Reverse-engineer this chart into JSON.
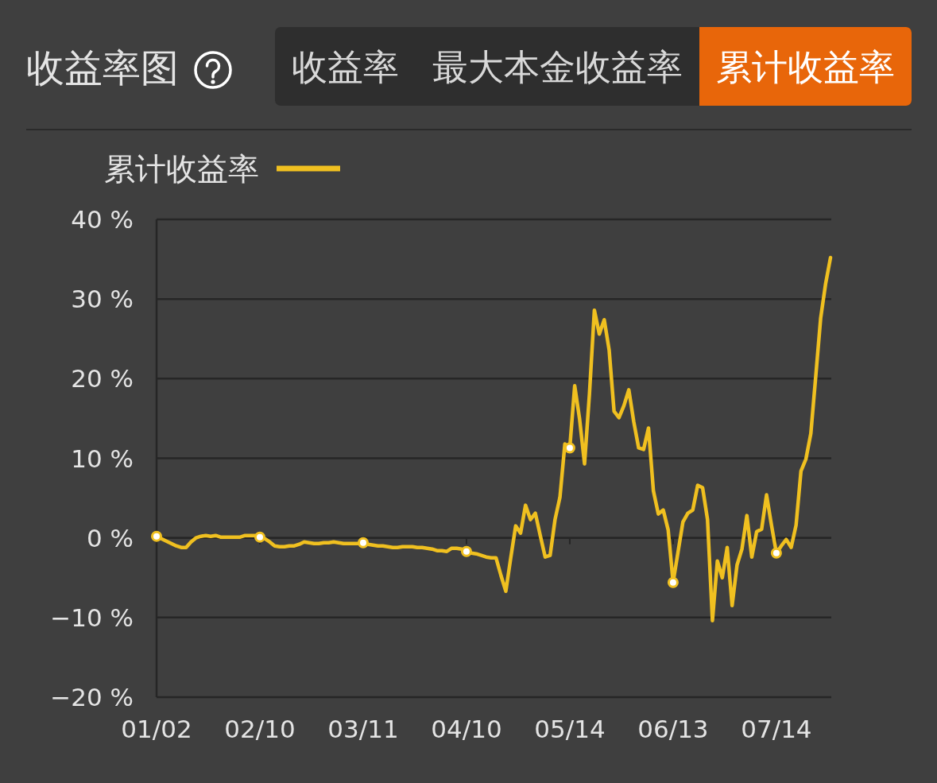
{
  "chart_data": {
    "type": "line",
    "title": "收益率图",
    "annotations": [
      "收益率",
      "最大本金收益率",
      "累计收益率"
    ],
    "categories": [
      "01/02",
      null,
      null,
      null,
      null,
      null,
      null,
      null,
      null,
      null,
      null,
      null,
      null,
      null,
      null,
      null,
      null,
      null,
      null,
      null,
      null,
      "02/10",
      null,
      null,
      null,
      null,
      null,
      null,
      null,
      null,
      null,
      null,
      null,
      null,
      null,
      null,
      null,
      null,
      null,
      null,
      null,
      null,
      "03/11",
      null,
      null,
      null,
      null,
      null,
      null,
      null,
      null,
      null,
      null,
      null,
      null,
      null,
      null,
      null,
      null,
      null,
      null,
      null,
      null,
      "04/10",
      null,
      null,
      null,
      null,
      null,
      null,
      null,
      null,
      null,
      null,
      null,
      null,
      null,
      null,
      null,
      null,
      null,
      null,
      null,
      null,
      "05/14",
      null,
      null,
      null,
      null,
      null,
      null,
      null,
      null,
      null,
      null,
      null,
      null,
      null,
      null,
      null,
      null,
      null,
      null,
      null,
      null,
      "06/13",
      null,
      null,
      null,
      null,
      null,
      null,
      null,
      null,
      null,
      null,
      null,
      null,
      null,
      null,
      null,
      null,
      null,
      null,
      null,
      null,
      "07/14",
      null,
      null,
      null,
      null,
      null,
      null,
      null,
      null,
      null,
      null,
      null
    ],
    "series": [
      {
        "name": "累计收益率",
        "color": "#f0c020",
        "values": [
          0.2,
          -0.1,
          -0.4,
          -0.7,
          -1.0,
          -1.2,
          -1.2,
          -0.5,
          0.0,
          0.2,
          0.3,
          0.2,
          0.3,
          0.1,
          0.1,
          0.1,
          0.1,
          0.1,
          0.3,
          0.3,
          0.3,
          0.1,
          -0.1,
          -0.5,
          -1.0,
          -1.1,
          -1.1,
          -1.0,
          -1.0,
          -0.8,
          -0.5,
          -0.6,
          -0.7,
          -0.7,
          -0.6,
          -0.6,
          -0.5,
          -0.6,
          -0.7,
          -0.7,
          -0.7,
          -0.7,
          -0.6,
          -0.8,
          -0.9,
          -1.0,
          -1.0,
          -1.1,
          -1.2,
          -1.2,
          -1.1,
          -1.1,
          -1.1,
          -1.2,
          -1.2,
          -1.3,
          -1.4,
          -1.6,
          -1.6,
          -1.7,
          -1.3,
          -1.3,
          -1.4,
          -1.7,
          -1.9,
          -2.0,
          -2.2,
          -2.4,
          -2.5,
          -2.5,
          -4.7,
          -6.7,
          -2.5,
          1.5,
          0.6,
          4.1,
          2.3,
          3.1,
          0.3,
          -2.4,
          -2.2,
          2.3,
          5.1,
          11.8,
          11.3,
          19.1,
          14.9,
          9.3,
          18.1,
          28.6,
          25.6,
          27.4,
          23.6,
          15.9,
          15.1,
          16.6,
          18.6,
          14.6,
          11.3,
          11.1,
          13.8,
          5.9,
          3.0,
          3.5,
          1.0,
          -5.6,
          -1.8,
          2.0,
          3.1,
          3.5,
          6.6,
          6.3,
          2.3,
          -10.4,
          -2.9,
          -5.0,
          -1.2,
          -8.5,
          -3.4,
          -1.4,
          2.8,
          -2.4,
          0.8,
          1.1,
          5.4,
          1.6,
          -1.9,
          -1.0,
          -0.2,
          -1.2,
          1.6,
          8.4,
          9.9,
          13.1,
          20.3,
          27.6,
          31.9,
          35.2
        ]
      },
      {
        "type": "scatter",
        "marker": "circle",
        "color": "#f0c020",
        "x": [
          "01/02",
          "02/10",
          "03/11",
          "04/10",
          "05/14",
          "06/13",
          "07/14"
        ],
        "values": [
          0.2,
          0.1,
          -0.6,
          -1.7,
          11.3,
          -5.6,
          -1.9
        ]
      }
    ],
    "ylim": [
      -20,
      40
    ],
    "yticks": [
      {
        "value": -20,
        "label": "−20 %"
      },
      {
        "value": -10,
        "label": "−10 %"
      },
      {
        "value": 0,
        "label": "0 %"
      },
      {
        "value": 10,
        "label": "10 %"
      },
      {
        "value": 20,
        "label": "20 %"
      },
      {
        "value": 30,
        "label": "30 %"
      },
      {
        "value": 40,
        "label": "40 %"
      }
    ],
    "grid": "y",
    "legend": "top left"
  }
}
